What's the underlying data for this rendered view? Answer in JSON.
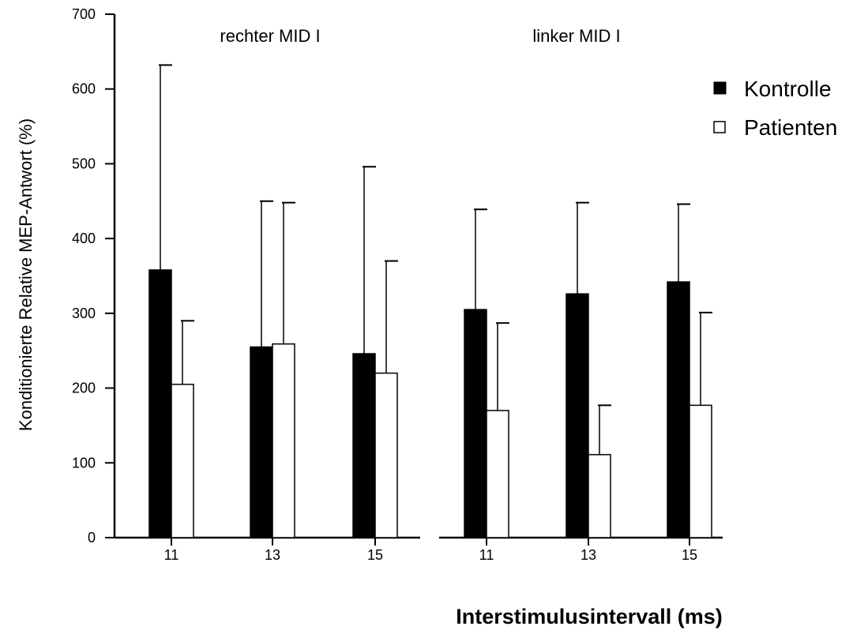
{
  "chart_data": {
    "type": "bar",
    "panels": [
      {
        "label": "rechter MID I",
        "categories": [
          "11",
          "13",
          "15"
        ],
        "series": [
          {
            "name": "Kontrolle",
            "values": [
              358,
              255,
              246
            ],
            "error_upper": [
              632,
              450,
              496
            ]
          },
          {
            "name": "Patienten",
            "values": [
              205,
              259,
              220
            ],
            "error_upper": [
              290,
              448,
              370
            ]
          }
        ]
      },
      {
        "label": "linker MID I",
        "categories": [
          "11",
          "13",
          "15"
        ],
        "series": [
          {
            "name": "Kontrolle",
            "values": [
              305,
              326,
              342
            ],
            "error_upper": [
              439,
              448,
              446
            ]
          },
          {
            "name": "Patienten",
            "values": [
              170,
              111,
              177
            ],
            "error_upper": [
              287,
              177,
              301
            ]
          }
        ]
      }
    ],
    "ylabel": "Konditionierte Relative MEP-Antwort (%)",
    "xlabel": "Interstimulusintervall (ms)",
    "ylim": [
      0,
      700
    ],
    "yticks": [
      0,
      100,
      200,
      300,
      400,
      500,
      600,
      700
    ],
    "grid": false,
    "legend_position": "top-right",
    "colors": {
      "Kontrolle": "#000000",
      "Patienten": "#ffffff",
      "axis": "#000000"
    }
  }
}
